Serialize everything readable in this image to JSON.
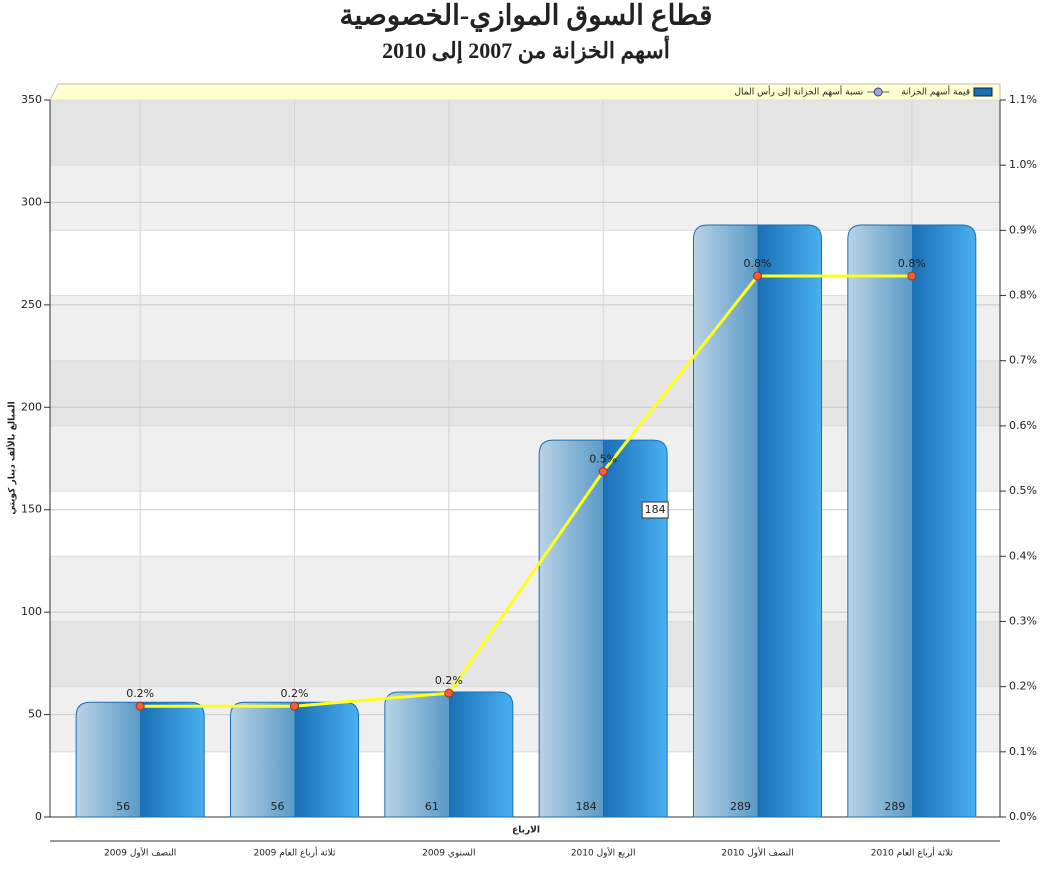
{
  "chart_data": {
    "type": "bar",
    "title": "قطاع السوق الموازي-الخصوصية",
    "subtitle": "أسهم الخزانة من 2007 إلى 2010",
    "x_label": "الارباع",
    "y_label": "المبالغ بالألف دينار كويتي",
    "categories": [
      "النصف الأول 2009",
      "ثلاثة أرباع العام 2009",
      "السنوي 2009",
      "الربع الأول 2010",
      "النصف الأول 2010",
      "ثلاثة أرباع العام 2010"
    ],
    "series": [
      {
        "name": "قيمة أسهم الخزانة",
        "type": "bar",
        "color": "#1a6fb5",
        "values": [
          56,
          56,
          61,
          184,
          289,
          289
        ]
      },
      {
        "name": "نسبة أسهم الخزانة إلى رأس المال",
        "type": "line",
        "axis": "y2",
        "color": "#ffff1a",
        "marker_color": "#f0603c",
        "values": [
          0.17,
          0.17,
          0.19,
          0.53,
          0.83,
          0.83
        ],
        "value_labels": [
          "0.2%",
          "0.2%",
          "0.2%",
          "0.5%",
          "0.8%",
          "0.8%"
        ]
      }
    ],
    "ylim": [
      0,
      350
    ],
    "yticks": [
      0,
      50,
      100,
      150,
      200,
      250,
      300,
      350
    ],
    "y2lim": [
      0,
      1.1
    ],
    "y2ticks": [
      {
        "value": 0,
        "label": "0.0%"
      },
      {
        "value": 0.1,
        "label": "0.1%"
      },
      {
        "value": 0.2,
        "label": "0.2%"
      },
      {
        "value": 0.3,
        "label": "0.3%"
      },
      {
        "value": 0.4,
        "label": "0.4%"
      },
      {
        "value": 0.5,
        "label": "0.5%"
      },
      {
        "value": 0.6,
        "label": "0.6%"
      },
      {
        "value": 0.7,
        "label": "0.7%"
      },
      {
        "value": 0.8,
        "label": "0.8%"
      },
      {
        "value": 0.9,
        "label": "0.9%"
      },
      {
        "value": 1.0,
        "label": "1.0%"
      },
      {
        "value": 1.1,
        "label": "1.1%"
      }
    ],
    "grid": true,
    "legend": "top"
  }
}
